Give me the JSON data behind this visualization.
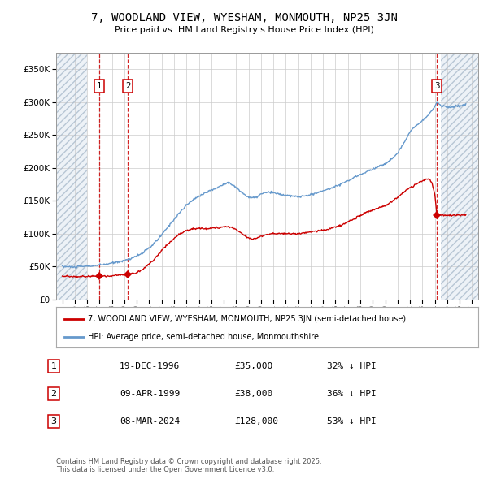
{
  "title": "7, WOODLAND VIEW, WYESHAM, MONMOUTH, NP25 3JN",
  "subtitle": "Price paid vs. HM Land Registry's House Price Index (HPI)",
  "background_color": "#ffffff",
  "plot_bg_color": "#ffffff",
  "grid_color": "#cccccc",
  "sale_dates_num": [
    1996.97,
    1999.27,
    2024.18
  ],
  "sale_prices": [
    35000,
    38000,
    128000
  ],
  "sale_labels": [
    "1",
    "2",
    "3"
  ],
  "ylim": [
    0,
    375000
  ],
  "yticks": [
    0,
    50000,
    100000,
    150000,
    200000,
    250000,
    300000,
    350000
  ],
  "ytick_labels": [
    "£0",
    "£50K",
    "£100K",
    "£150K",
    "£200K",
    "£250K",
    "£300K",
    "£350K"
  ],
  "xlim": [
    1993.5,
    2027.5
  ],
  "legend_property_label": "7, WOODLAND VIEW, WYESHAM, MONMOUTH, NP25 3JN (semi-detached house)",
  "legend_hpi_label": "HPI: Average price, semi-detached house, Monmouthshire",
  "table_data": [
    [
      "1",
      "19-DEC-1996",
      "£35,000",
      "32% ↓ HPI"
    ],
    [
      "2",
      "09-APR-1999",
      "£38,000",
      "36% ↓ HPI"
    ],
    [
      "3",
      "08-MAR-2024",
      "£128,000",
      "53% ↓ HPI"
    ]
  ],
  "footer_text": "Contains HM Land Registry data © Crown copyright and database right 2025.\nThis data is licensed under the Open Government Licence v3.0.",
  "red_line_color": "#cc0000",
  "blue_line_color": "#6699cc",
  "sale_marker_color": "#cc0000",
  "vline_color": "#cc0000",
  "hatch_left_end": 1996.0,
  "hatch_right_start": 2024.5,
  "hatch_fill_color": "#dce6f0",
  "hatch_edge_color": "#aabbcc"
}
